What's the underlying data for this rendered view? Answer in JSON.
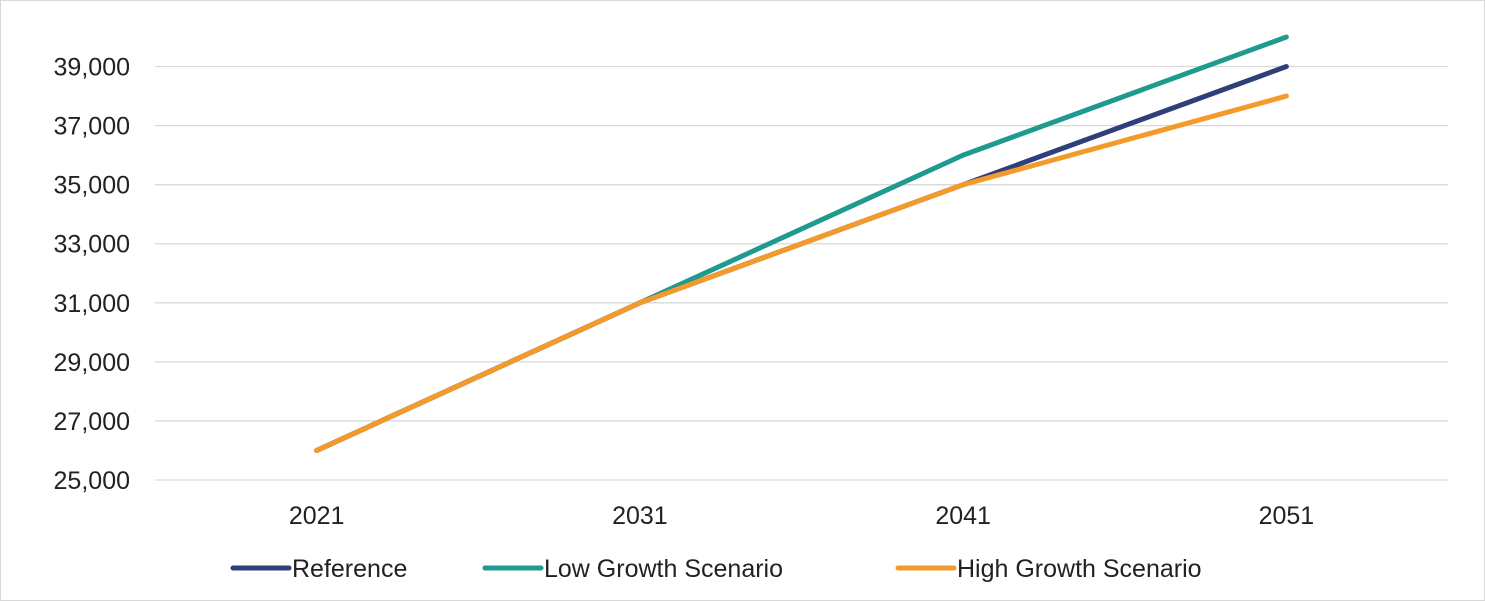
{
  "chart_data": {
    "type": "line",
    "categories": [
      "2021",
      "2031",
      "2041",
      "2051"
    ],
    "ylim": [
      25000,
      40000
    ],
    "yticks": [
      "25,000",
      "27,000",
      "29,000",
      "31,000",
      "33,000",
      "35,000",
      "37,000",
      "39,000"
    ],
    "ytick_values": [
      25000,
      27000,
      29000,
      31000,
      33000,
      35000,
      37000,
      39000
    ],
    "grid": true,
    "legend_position": "bottom",
    "series": [
      {
        "name": "Reference",
        "color": "#2e3f7a",
        "values": [
          26000,
          31000,
          35000,
          39000
        ]
      },
      {
        "name": "Low Growth Scenario",
        "color": "#1f9a8e",
        "values": [
          26000,
          31000,
          36000,
          40000
        ]
      },
      {
        "name": "High Growth Scenario",
        "color": "#f39a2b",
        "values": [
          26000,
          31000,
          35000,
          38000
        ]
      }
    ],
    "gridline_color": "#d9d9d9"
  }
}
